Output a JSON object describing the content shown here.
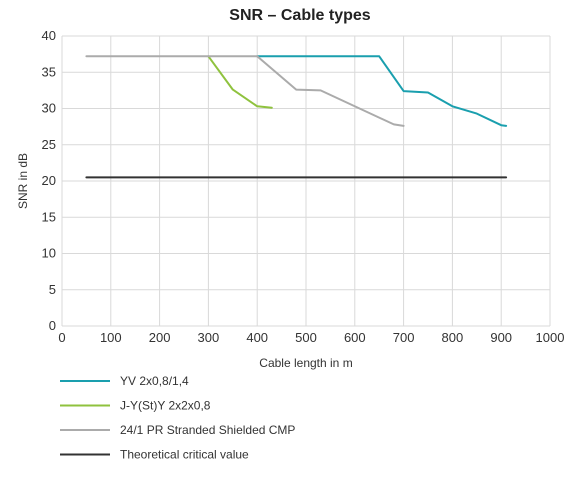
{
  "chart_data": {
    "type": "line",
    "title": "SNR – Cable types",
    "xlabel": "Cable length in m",
    "ylabel": "SNR in dB",
    "xlim": [
      0,
      1000
    ],
    "ylim": [
      0,
      40
    ],
    "x_ticks": [
      0,
      100,
      200,
      300,
      400,
      500,
      600,
      700,
      800,
      900,
      1000
    ],
    "y_ticks": [
      0,
      5,
      10,
      15,
      20,
      25,
      30,
      35,
      40
    ],
    "grid": true,
    "legend_position": "bottom",
    "series": [
      {
        "name": "YV 2x0,8/1,4",
        "color": "#1a9fae",
        "points": [
          [
            400,
            37.2
          ],
          [
            650,
            37.2
          ],
          [
            700,
            32.4
          ],
          [
            750,
            32.2
          ],
          [
            800,
            30.3
          ],
          [
            850,
            29.3
          ],
          [
            900,
            27.7
          ],
          [
            910,
            27.6
          ]
        ]
      },
      {
        "name": "J-Y(St)Y 2x2x0,8",
        "color": "#8fc23e",
        "points": [
          [
            300,
            37.2
          ],
          [
            350,
            32.6
          ],
          [
            400,
            30.3
          ],
          [
            430,
            30.1
          ]
        ]
      },
      {
        "name": "24/1 PR Stranded Shielded CMP",
        "color": "#ababab",
        "points": [
          [
            50,
            37.2
          ],
          [
            400,
            37.2
          ],
          [
            480,
            32.6
          ],
          [
            530,
            32.5
          ],
          [
            680,
            27.8
          ],
          [
            700,
            27.6
          ]
        ]
      },
      {
        "name": "Theoretical critical value",
        "color": "#333333",
        "points": [
          [
            50,
            20.5
          ],
          [
            910,
            20.5
          ]
        ]
      }
    ]
  }
}
